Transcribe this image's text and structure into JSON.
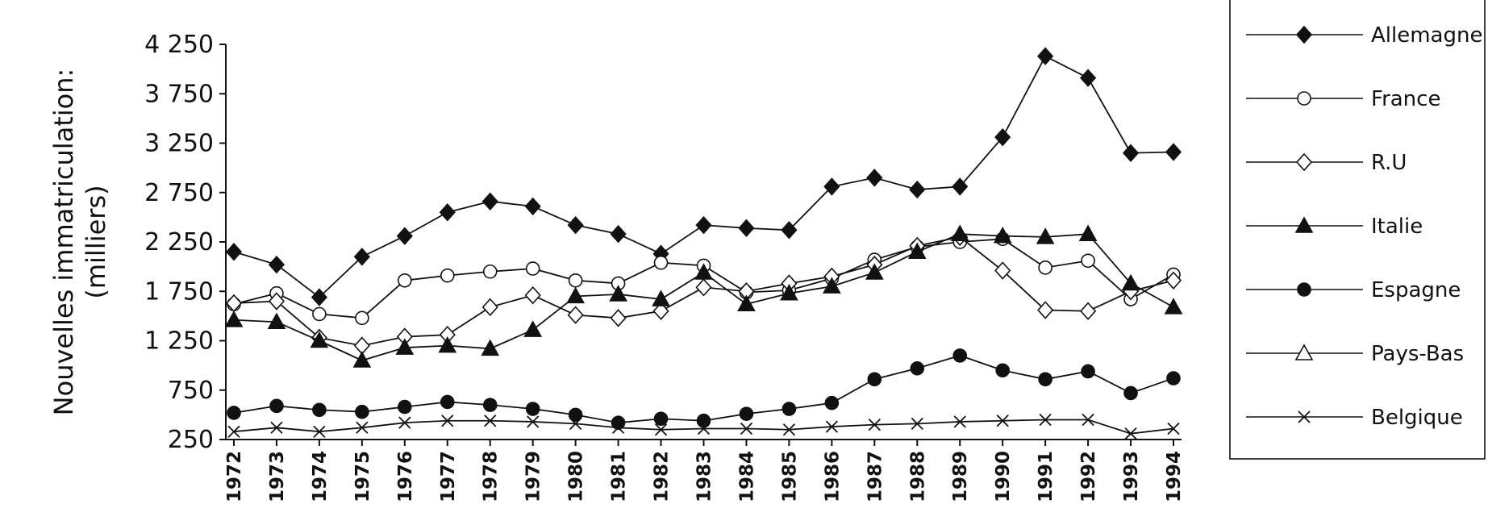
{
  "chart_data": {
    "type": "line",
    "title": "",
    "ylabel_lines": [
      "Nouvelles immatriculation:",
      "(milliers)"
    ],
    "xlabel": "",
    "ylim": [
      250,
      4250
    ],
    "yticks": [
      250,
      750,
      1250,
      1750,
      2250,
      2750,
      3250,
      3750,
      4250
    ],
    "ytick_labels": [
      "250",
      "750",
      "1 250",
      "1 750",
      "2 250",
      "2 750",
      "3 250",
      "3 750",
      "4 250"
    ],
    "grid": false,
    "legend_position": "right",
    "x": [
      "1972",
      "1973",
      "1974",
      "1975",
      "1976",
      "1977",
      "1978",
      "1979",
      "1980",
      "1981",
      "1982",
      "1983",
      "1984",
      "1985",
      "1986",
      "1987",
      "1988",
      "1989",
      "1990",
      "1991",
      "1992",
      "1993",
      "1994"
    ],
    "series": [
      {
        "name": "Allemagne",
        "marker": "diamond-filled",
        "values": [
          2150,
          2020,
          1690,
          2100,
          2310,
          2550,
          2660,
          2610,
          2420,
          2330,
          2130,
          2420,
          2390,
          2370,
          2810,
          2900,
          2780,
          2810,
          3310,
          4130,
          3910,
          3150,
          3160
        ]
      },
      {
        "name": "France",
        "marker": "circle-open",
        "values": [
          1620,
          1730,
          1520,
          1480,
          1860,
          1910,
          1950,
          1980,
          1860,
          1830,
          2040,
          2010,
          1740,
          1760,
          1880,
          2070,
          2200,
          2250,
          2280,
          1990,
          2060,
          1670,
          1920
        ]
      },
      {
        "name": "R.U",
        "marker": "diamond-open",
        "values": [
          1630,
          1650,
          1280,
          1200,
          1290,
          1310,
          1590,
          1710,
          1510,
          1480,
          1550,
          1790,
          1750,
          1830,
          1900,
          2020,
          2210,
          2300,
          1960,
          1560,
          1550,
          1750,
          1860
        ]
      },
      {
        "name": "Italie",
        "marker": "triangle-filled",
        "values": [
          1460,
          1440,
          1250,
          1050,
          1180,
          1200,
          1170,
          1360,
          1700,
          1720,
          1670,
          1940,
          1620,
          1730,
          1800,
          1940,
          2150,
          2330,
          2310,
          2300,
          2330,
          1830,
          1590
        ]
      },
      {
        "name": "Espagne",
        "marker": "circle-filled",
        "values": [
          520,
          590,
          550,
          530,
          580,
          630,
          600,
          560,
          500,
          420,
          460,
          440,
          510,
          560,
          620,
          860,
          970,
          1100,
          950,
          860,
          940,
          720,
          870
        ]
      },
      {
        "name": "Pays-Bas",
        "marker": "triangle-open",
        "values": [
          null,
          null,
          null,
          null,
          null,
          null,
          null,
          null,
          null,
          null,
          null,
          null,
          null,
          null,
          null,
          null,
          null,
          null,
          null,
          null,
          null,
          null,
          null
        ]
      },
      {
        "name": "Belgique",
        "marker": "x",
        "values": [
          330,
          370,
          330,
          370,
          420,
          440,
          440,
          430,
          410,
          370,
          350,
          360,
          360,
          350,
          380,
          400,
          410,
          430,
          440,
          450,
          450,
          310,
          360
        ]
      }
    ]
  }
}
